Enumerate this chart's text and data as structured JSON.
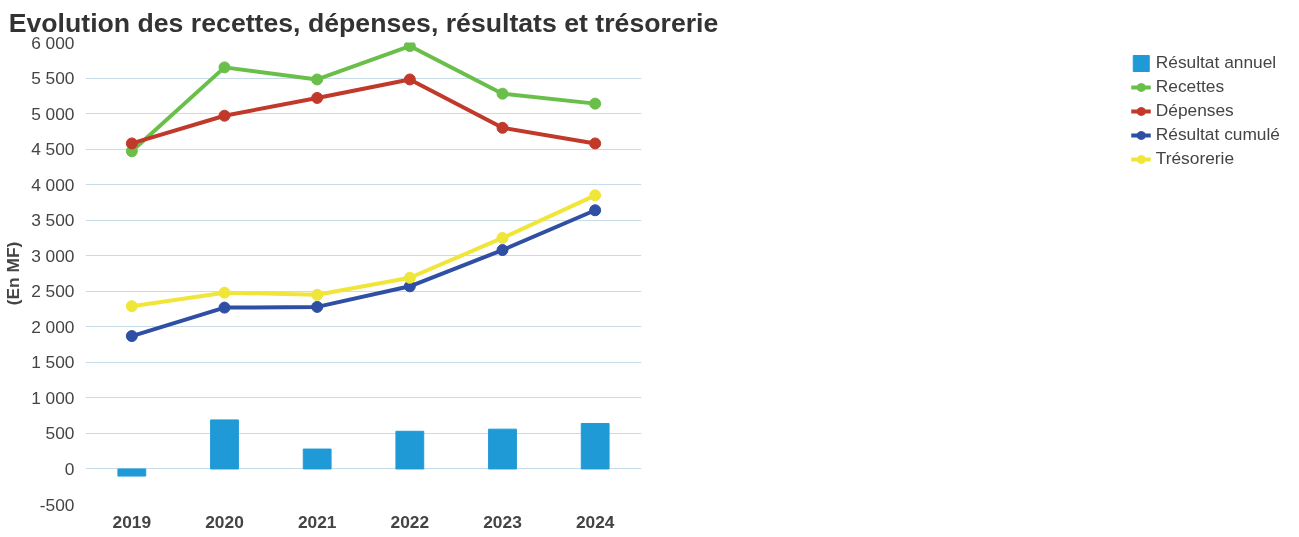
{
  "chart_data": {
    "type": "line",
    "title": "Evolution des recettes, dépenses, résultats et trésorerie",
    "ylabel": "(En MF)",
    "categories": [
      "2019",
      "2020",
      "2021",
      "2022",
      "2023",
      "2024"
    ],
    "series": [
      {
        "name": "Résultat annuel",
        "type": "bar",
        "color": "#1f9ad6",
        "values": [
          -100,
          690,
          280,
          530,
          560,
          640
        ]
      },
      {
        "name": "Recettes",
        "color": "#6abf4b",
        "values": [
          4470,
          5650,
          5480,
          5950,
          5280,
          5140
        ]
      },
      {
        "name": "Dépenses",
        "color": "#c0392b",
        "values": [
          4580,
          4970,
          5220,
          5480,
          4800,
          4580
        ]
      },
      {
        "name": "Résultat cumulé",
        "color": "#2e4fa3",
        "values": [
          1870,
          2270,
          2280,
          2570,
          3080,
          3640
        ]
      },
      {
        "name": "Trésorerie",
        "color": "#f0e63a",
        "values": [
          2290,
          2480,
          2450,
          2690,
          3250,
          3850
        ]
      }
    ],
    "ylim": [
      -500,
      6000
    ],
    "yticks": [
      {
        "value": -500,
        "label": "-500"
      },
      0,
      500,
      {
        "value": 1000,
        "label": "1 000"
      },
      {
        "value": 1500,
        "label": "1 500"
      },
      {
        "value": 2000,
        "label": "2 000"
      },
      {
        "value": 2500,
        "label": "2 500"
      },
      {
        "value": 3000,
        "label": "3 000"
      },
      {
        "value": 3500,
        "label": "3 500"
      },
      {
        "value": 4000,
        "label": "4 000"
      },
      {
        "value": 4500,
        "label": "4 500"
      },
      {
        "value": 5000,
        "label": "5 000"
      },
      {
        "value": 5500,
        "label": "5 500"
      },
      {
        "value": 6000,
        "label": "6 000"
      }
    ],
    "grid": "y",
    "legend": "right",
    "marker": "circle",
    "line_style": "solid"
  }
}
